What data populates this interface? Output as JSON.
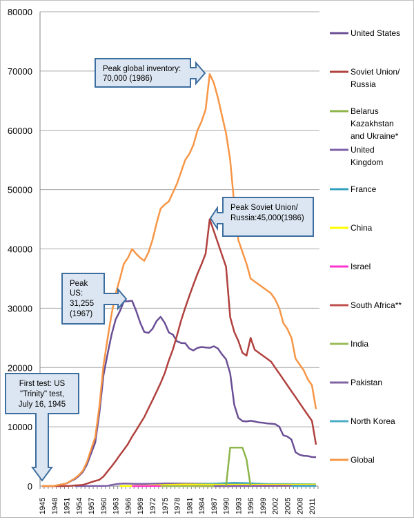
{
  "chart_data": {
    "type": "line",
    "title": "",
    "xlabel": "",
    "ylabel": "",
    "xlim": [
      1945,
      2012
    ],
    "ylim": [
      0,
      80000
    ],
    "y_ticks": [
      "0",
      "10000",
      "20000",
      "30000",
      "40000",
      "50000",
      "60000",
      "70000",
      "80000"
    ],
    "x_ticks": [
      "1945",
      "1948",
      "1951",
      "1954",
      "1957",
      "1960",
      "1963",
      "1966",
      "1969",
      "1972",
      "1975",
      "1978",
      "1981",
      "1984",
      "1987",
      "1990",
      "1993",
      "1996",
      "1999",
      "2002",
      "2005",
      "2008",
      "2011"
    ],
    "grid": "horizontal",
    "legend_position": "right",
    "years": [
      1945,
      1946,
      1947,
      1948,
      1949,
      1950,
      1951,
      1952,
      1953,
      1954,
      1955,
      1956,
      1957,
      1958,
      1959,
      1960,
      1961,
      1962,
      1963,
      1964,
      1965,
      1966,
      1967,
      1968,
      1969,
      1970,
      1971,
      1972,
      1973,
      1974,
      1975,
      1976,
      1977,
      1978,
      1979,
      1980,
      1981,
      1982,
      1983,
      1984,
      1985,
      1986,
      1987,
      1988,
      1989,
      1990,
      1991,
      1992,
      1993,
      1994,
      1995,
      1996,
      1997,
      1998,
      1999,
      2000,
      2001,
      2002,
      2003,
      2004,
      2005,
      2006,
      2007,
      2008,
      2009,
      2010,
      2011,
      2012
    ],
    "series": [
      {
        "name": "United States",
        "color": "#6b4f96",
        "values": [
          2,
          9,
          13,
          50,
          170,
          299,
          438,
          841,
          1169,
          1703,
          2422,
          3692,
          5543,
          7345,
          12298,
          18638,
          22229,
          25540,
          28133,
          29463,
          31139,
          31175,
          31255,
          29561,
          27552,
          26008,
          25830,
          26516,
          27835,
          28537,
          27519,
          25914,
          25542,
          24418,
          24138,
          24104,
          23208,
          22886,
          23305,
          23459,
          23368,
          23317,
          23575,
          23205,
          22217,
          21392,
          19008,
          13708,
          11511,
          10979,
          10904,
          11011,
          10903,
          10732,
          10685,
          10577,
          10526,
          10457,
          10027,
          8570,
          8360,
          7853,
          5709,
          5273,
          5113,
          5066,
          4897,
          4881
        ]
      },
      {
        "name": "Soviet Union/ Russia",
        "color": "#b0413e",
        "values": [
          0,
          0,
          0,
          0,
          1,
          5,
          25,
          50,
          120,
          150,
          200,
          426,
          660,
          869,
          1060,
          1605,
          2471,
          3322,
          4238,
          5221,
          6129,
          7089,
          8339,
          9399,
          10538,
          11643,
          13092,
          14478,
          15915,
          17385,
          19055,
          21205,
          23044,
          25393,
          27935,
          30062,
          32049,
          33952,
          35804,
          37431,
          39197,
          45000,
          43000,
          41000,
          39000,
          37000,
          28500,
          26000,
          24500,
          22500,
          22000,
          25000,
          23000,
          22500,
          22000,
          21500,
          21000,
          20000,
          19000,
          18000,
          17000,
          16000,
          15000,
          14000,
          13000,
          12000,
          11000,
          7000
        ]
      },
      {
        "name": "Belarus Kazakhstan and Ukraine*",
        "color": "#8db54b",
        "points": [
          [
            1990,
            0
          ],
          [
            1991,
            6500
          ],
          [
            1992,
            6500
          ],
          [
            1993,
            6500
          ],
          [
            1994,
            6500
          ],
          [
            1995,
            4500
          ],
          [
            1996,
            0
          ]
        ]
      },
      {
        "name": "United Kingdom",
        "color": "#7e62a8",
        "points": [
          [
            1953,
            1
          ],
          [
            1957,
            20
          ],
          [
            1960,
            30
          ],
          [
            1961,
            50
          ],
          [
            1962,
            200
          ],
          [
            1963,
            310
          ],
          [
            1964,
            400
          ],
          [
            1965,
            430
          ],
          [
            1966,
            420
          ],
          [
            1968,
            380
          ],
          [
            1970,
            390
          ],
          [
            1975,
            450
          ],
          [
            1980,
            440
          ],
          [
            1985,
            410
          ],
          [
            1990,
            350
          ],
          [
            1995,
            300
          ],
          [
            2000,
            280
          ],
          [
            2005,
            270
          ],
          [
            2012,
            225
          ]
        ]
      },
      {
        "name": "France",
        "color": "#31a0bf",
        "points": [
          [
            1964,
            4
          ],
          [
            1966,
            36
          ],
          [
            1970,
            36
          ],
          [
            1975,
            188
          ],
          [
            1980,
            250
          ],
          [
            1985,
            360
          ],
          [
            1990,
            505
          ],
          [
            1992,
            540
          ],
          [
            1995,
            500
          ],
          [
            2000,
            350
          ],
          [
            2005,
            350
          ],
          [
            2012,
            300
          ]
        ]
      },
      {
        "name": "China",
        "color": "#ffff00",
        "points": [
          [
            1964,
            1
          ],
          [
            1970,
            75
          ],
          [
            1975,
            185
          ],
          [
            1980,
            280
          ],
          [
            1985,
            243
          ],
          [
            1990,
            232
          ],
          [
            2000,
            232
          ],
          [
            2012,
            240
          ]
        ]
      },
      {
        "name": "Israel",
        "color": "#ff33cc",
        "points": [
          [
            1967,
            2
          ],
          [
            1975,
            20
          ],
          [
            1980,
            31
          ],
          [
            1985,
            42
          ],
          [
            1990,
            53
          ],
          [
            2000,
            72
          ],
          [
            2012,
            80
          ]
        ]
      },
      {
        "name": "South Africa**",
        "color": "#c0504d",
        "points": [
          [
            1982,
            1
          ],
          [
            1985,
            3
          ],
          [
            1989,
            6
          ],
          [
            1990,
            6
          ],
          [
            1991,
            0
          ]
        ]
      },
      {
        "name": "India",
        "color": "#9bbb59",
        "points": [
          [
            1974,
            0
          ],
          [
            1990,
            10
          ],
          [
            2000,
            40
          ],
          [
            2012,
            90
          ]
        ]
      },
      {
        "name": "Pakistan",
        "color": "#8064a2",
        "points": [
          [
            1987,
            0
          ],
          [
            1990,
            5
          ],
          [
            2000,
            40
          ],
          [
            2012,
            100
          ]
        ]
      },
      {
        "name": "North Korea",
        "color": "#4bacc6",
        "points": [
          [
            2006,
            0
          ],
          [
            2009,
            5
          ],
          [
            2012,
            10
          ]
        ]
      },
      {
        "name": "Global",
        "color": "#f79646",
        "values": [
          2,
          9,
          13,
          50,
          170,
          304,
          463,
          891,
          1290,
          1854,
          2625,
          4123,
          6216,
          8232,
          13379,
          20300,
          24800,
          29000,
          32500,
          34900,
          37500,
          38500,
          40000,
          39200,
          38500,
          38000,
          39400,
          41500,
          44300,
          46800,
          47500,
          48000,
          49500,
          51000,
          53000,
          55000,
          56000,
          57500,
          60000,
          61500,
          63500,
          69500,
          68000,
          65500,
          62500,
          59500,
          55000,
          47500,
          41500,
          39500,
          37500,
          35000,
          34500,
          34000,
          33500,
          33000,
          32500,
          31500,
          30000,
          27500,
          26500,
          25000,
          21500,
          20500,
          19500,
          18000,
          17000,
          13000
        ]
      }
    ],
    "annotations": [
      {
        "lines": [
          "Peak global inventory:",
          "70,000 (1986)"
        ]
      },
      {
        "lines": [
          "Peak  Soviet Union/",
          "Russia:45,000(1986)"
        ]
      },
      {
        "lines": [
          "Peak",
          "US:",
          "31,255",
          "(1967)"
        ]
      },
      {
        "lines": [
          "First test: US",
          "\"Trinity\" test,",
          "July 16, 1945"
        ]
      }
    ]
  }
}
